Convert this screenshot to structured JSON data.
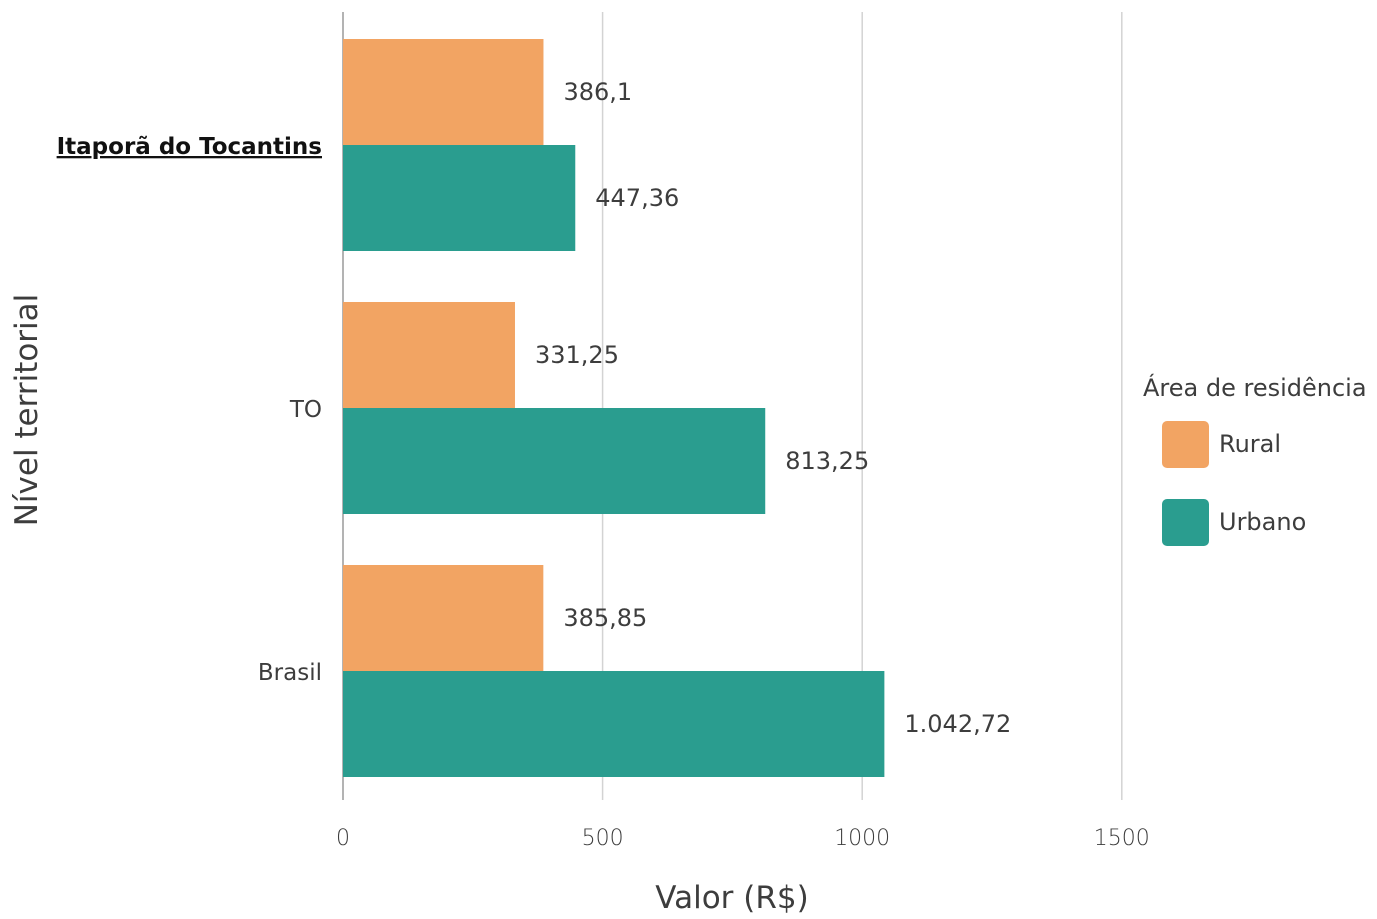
{
  "chart_data": {
    "type": "bar",
    "orientation": "horizontal",
    "categories": [
      "Itaporã do Tocantins",
      "TO",
      "Brasil"
    ],
    "highlighted_category": "Itaporã do Tocantins",
    "series": [
      {
        "name": "Rural",
        "color": "#F2A463",
        "values": [
          386.1,
          331.25,
          385.85
        ],
        "labels": [
          "386,1",
          "331,25",
          "385,85"
        ]
      },
      {
        "name": "Urbano",
        "color": "#2A9D8F",
        "values": [
          447.36,
          813.25,
          1042.72
        ],
        "labels": [
          "447,36",
          "813,25",
          "1.042,72"
        ]
      }
    ],
    "xlabel": "Valor (R$)",
    "ylabel": "Nível territorial",
    "xlim": [
      0,
      1700
    ],
    "xticks": [
      0,
      500,
      1000,
      1500
    ],
    "xtick_labels": [
      "0",
      "500",
      "1000",
      "1500"
    ],
    "grid": true,
    "legend": {
      "title": "Área de residência",
      "position": "right",
      "items": [
        "Rural",
        "Urbano"
      ]
    }
  }
}
